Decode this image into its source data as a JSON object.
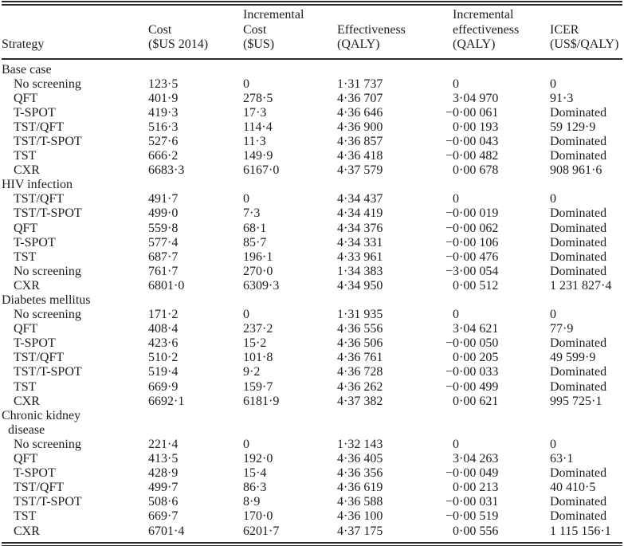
{
  "table": {
    "columns": [
      {
        "id": "strategy",
        "lines": [
          "Strategy"
        ]
      },
      {
        "id": "cost",
        "lines": [
          "Cost",
          "($US 2014)"
        ]
      },
      {
        "id": "inc_cost",
        "lines": [
          "Incremental",
          "Cost",
          "($US)"
        ]
      },
      {
        "id": "effectiveness",
        "lines": [
          "Effectiveness",
          "(QALY)"
        ]
      },
      {
        "id": "inc_effectiveness",
        "lines": [
          "Incremental",
          "effectiveness",
          "(QALY)"
        ]
      },
      {
        "id": "icer",
        "lines": [
          "ICER",
          "(US$/QALY)"
        ]
      }
    ],
    "dominated_label": "Dominated",
    "sections": [
      {
        "label": "Base case",
        "rows": [
          {
            "strategy": "No screening",
            "cost": "123·5",
            "inc_cost": "0",
            "effectiveness": "1·31 737",
            "inc_effectiveness": "0",
            "icer": "0"
          },
          {
            "strategy": "QFT",
            "cost": "401·9",
            "inc_cost": "278·5",
            "effectiveness": "4·36 707",
            "inc_effectiveness": "3·04 970",
            "icer": "91·3"
          },
          {
            "strategy": "T-SPOT",
            "cost": "419·3",
            "inc_cost": "17·3",
            "effectiveness": "4·36 646",
            "inc_effectiveness": "−0·00 061",
            "icer": "Dominated"
          },
          {
            "strategy": "TST/QFT",
            "cost": "516·3",
            "inc_cost": "114·4",
            "effectiveness": "4·36 900",
            "inc_effectiveness": "0·00 193",
            "icer": "59 129·9"
          },
          {
            "strategy": "TST/T-SPOT",
            "cost": "527·6",
            "inc_cost": "11·3",
            "effectiveness": "4·36 857",
            "inc_effectiveness": "−0·00 043",
            "icer": "Dominated"
          },
          {
            "strategy": "TST",
            "cost": "666·2",
            "inc_cost": "149·9",
            "effectiveness": "4·36 418",
            "inc_effectiveness": "−0·00 482",
            "icer": "Dominated"
          },
          {
            "strategy": "CXR",
            "cost": "6683·3",
            "inc_cost": "6167·0",
            "effectiveness": "4·37 579",
            "inc_effectiveness": "0·00 678",
            "icer": "908 961·6"
          }
        ]
      },
      {
        "label": "HIV infection",
        "rows": [
          {
            "strategy": "TST/QFT",
            "cost": "491·7",
            "inc_cost": "0",
            "effectiveness": "4·34 437",
            "inc_effectiveness": "0",
            "icer": "0"
          },
          {
            "strategy": "TST/T-SPOT",
            "cost": "499·0",
            "inc_cost": "7·3",
            "effectiveness": "4·34 419",
            "inc_effectiveness": "−0·00 019",
            "icer": "Dominated"
          },
          {
            "strategy": "QFT",
            "cost": "559·8",
            "inc_cost": "68·1",
            "effectiveness": "4·34 376",
            "inc_effectiveness": "−0·00 062",
            "icer": "Dominated"
          },
          {
            "strategy": "T-SPOT",
            "cost": "577·4",
            "inc_cost": "85·7",
            "effectiveness": "4·34 331",
            "inc_effectiveness": "−0·00 106",
            "icer": "Dominated"
          },
          {
            "strategy": "TST",
            "cost": "687·7",
            "inc_cost": "196·1",
            "effectiveness": "4·33 961",
            "inc_effectiveness": "−0·00 476",
            "icer": "Dominated"
          },
          {
            "strategy": "No screening",
            "cost": "761·7",
            "inc_cost": "270·0",
            "effectiveness": "1·34 383",
            "inc_effectiveness": "−3·00 054",
            "icer": "Dominated"
          },
          {
            "strategy": "CXR",
            "cost": "6801·0",
            "inc_cost": "6309·3",
            "effectiveness": "4·34 950",
            "inc_effectiveness": "0·00 512",
            "icer": "1 231 827·4"
          }
        ]
      },
      {
        "label": "Diabetes mellitus",
        "rows": [
          {
            "strategy": "No screening",
            "cost": "171·2",
            "inc_cost": "0",
            "effectiveness": "1·31 935",
            "inc_effectiveness": "0",
            "icer": "0"
          },
          {
            "strategy": "QFT",
            "cost": "408·4",
            "inc_cost": "237·2",
            "effectiveness": "4·36 556",
            "inc_effectiveness": "3·04 621",
            "icer": "77·9"
          },
          {
            "strategy": "T-SPOT",
            "cost": "423·6",
            "inc_cost": "15·2",
            "effectiveness": "4·36 506",
            "inc_effectiveness": "−0·00 050",
            "icer": "Dominated"
          },
          {
            "strategy": "TST/QFT",
            "cost": "510·2",
            "inc_cost": "101·8",
            "effectiveness": "4·36 761",
            "inc_effectiveness": "0·00 205",
            "icer": "49 599·9"
          },
          {
            "strategy": "TST/T-SPOT",
            "cost": "519·4",
            "inc_cost": "9·2",
            "effectiveness": "4·36 728",
            "inc_effectiveness": "−0·00 033",
            "icer": "Dominated"
          },
          {
            "strategy": "TST",
            "cost": "669·9",
            "inc_cost": "159·7",
            "effectiveness": "4·36 262",
            "inc_effectiveness": "−0·00 499",
            "icer": "Dominated"
          },
          {
            "strategy": "CXR",
            "cost": "6692·1",
            "inc_cost": "6181·9",
            "effectiveness": "4·37 382",
            "inc_effectiveness": "0·00 621",
            "icer": "995 725·1"
          }
        ]
      },
      {
        "label": "Chronic kidney\n  disease",
        "rows": [
          {
            "strategy": "No screening",
            "cost": "221·4",
            "inc_cost": "0",
            "effectiveness": "1·32 143",
            "inc_effectiveness": "0",
            "icer": "0"
          },
          {
            "strategy": "QFT",
            "cost": "413·5",
            "inc_cost": "192·0",
            "effectiveness": "4·36 405",
            "inc_effectiveness": "3·04 263",
            "icer": "63·1"
          },
          {
            "strategy": "T-SPOT",
            "cost": "428·9",
            "inc_cost": "15·4",
            "effectiveness": "4·36 356",
            "inc_effectiveness": "−0·00 049",
            "icer": "Dominated"
          },
          {
            "strategy": "TST/QFT",
            "cost": "499·7",
            "inc_cost": "86·3",
            "effectiveness": "4·36 619",
            "inc_effectiveness": "0·00 213",
            "icer": "40 410·5"
          },
          {
            "strategy": "TST/T-SPOT",
            "cost": "508·6",
            "inc_cost": "8·9",
            "effectiveness": "4·36 588",
            "inc_effectiveness": "−0·00 031",
            "icer": "Dominated"
          },
          {
            "strategy": "TST",
            "cost": "669·7",
            "inc_cost": "170·0",
            "effectiveness": "4·36 100",
            "inc_effectiveness": "−0·00 519",
            "icer": "Dominated"
          },
          {
            "strategy": "CXR",
            "cost": "6701·4",
            "inc_cost": "6201·7",
            "effectiveness": "4·37 175",
            "inc_effectiveness": "0·00 556",
            "icer": "1 115 156·1"
          }
        ]
      }
    ]
  }
}
